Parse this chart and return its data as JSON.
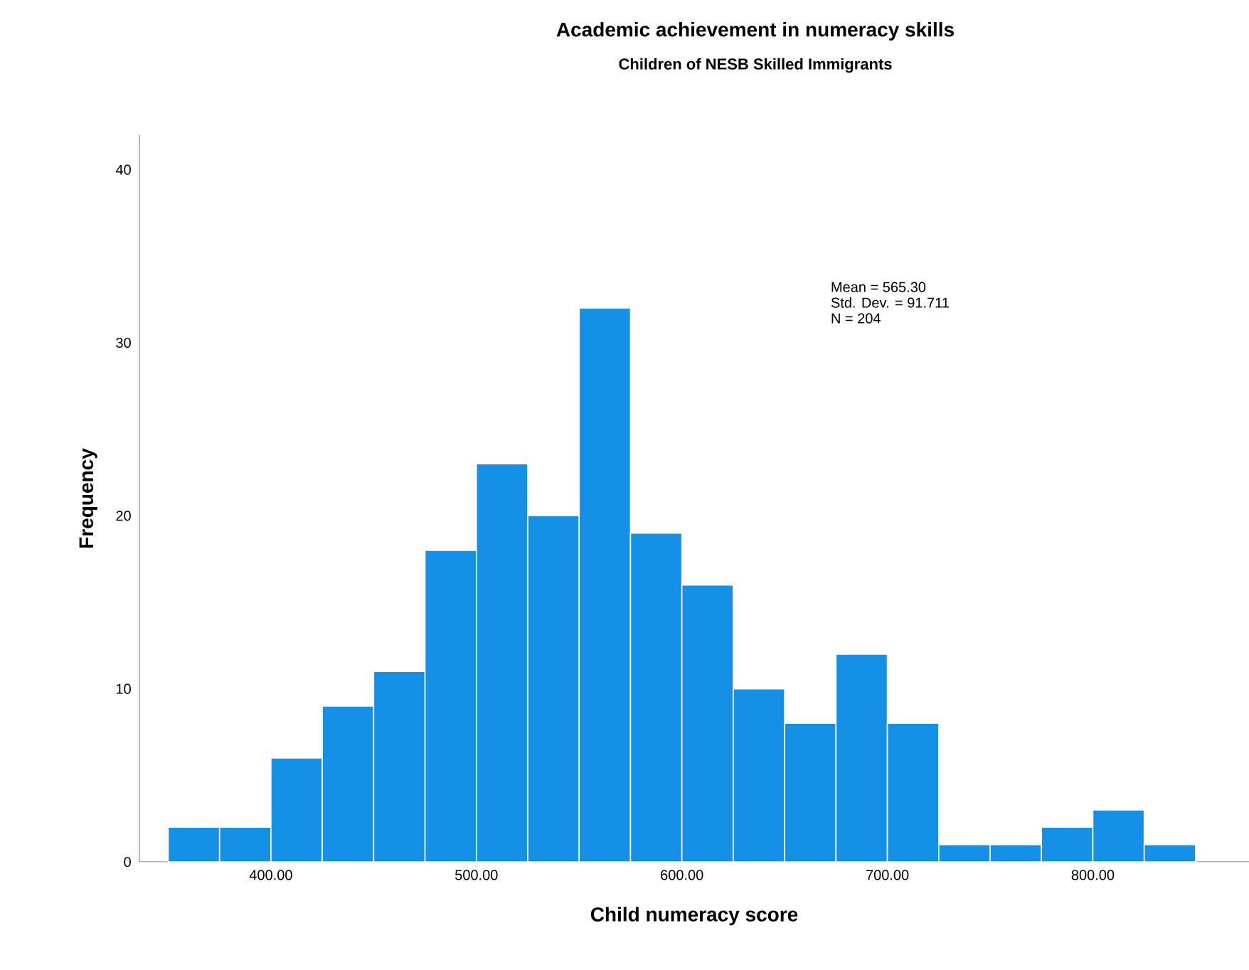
{
  "chart_data": {
    "type": "histogram",
    "title": "Academic achievement in numeracy skills",
    "subtitle": "Children of NESB Skilled Immigrants",
    "xlabel": "Child numeracy score",
    "ylabel": "Frequency",
    "bins": [
      350,
      375,
      400,
      425,
      450,
      475,
      500,
      525,
      550,
      575,
      600,
      625,
      650,
      675,
      700,
      725,
      750,
      775,
      800,
      825,
      850
    ],
    "values": [
      2,
      2,
      6,
      9,
      11,
      18,
      23,
      20,
      32,
      19,
      16,
      10,
      8,
      12,
      8,
      1,
      1,
      2,
      3,
      1
    ],
    "color": "#1490e6",
    "xlim": [
      336,
      876
    ],
    "ylim": [
      0,
      42
    ],
    "xticks": [
      {
        "value": 400,
        "label": "400.00"
      },
      {
        "value": 500,
        "label": "500.00"
      },
      {
        "value": 600,
        "label": "600.00"
      },
      {
        "value": 700,
        "label": "700.00"
      },
      {
        "value": 800,
        "label": "800.00"
      }
    ],
    "yticks": [
      0,
      10,
      20,
      30,
      40
    ],
    "annotations": [
      "Mean = 565.30",
      "Std. Dev. = 91.711",
      "N = 204"
    ],
    "grid": false
  }
}
